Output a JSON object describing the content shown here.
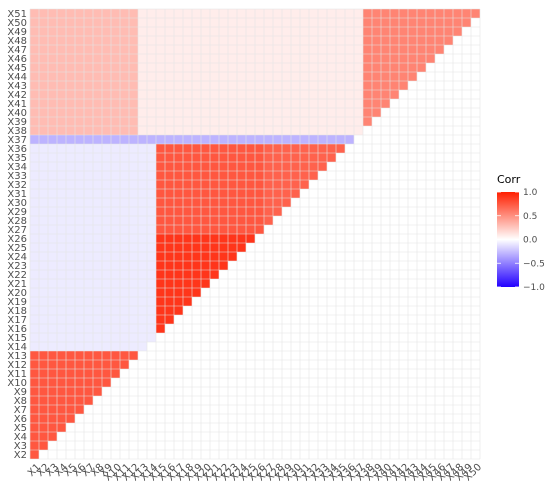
{
  "chart_data": {
    "type": "heatmap",
    "title": "",
    "xlabel": "",
    "ylabel": "",
    "variables": [
      "X1",
      "X2",
      "X3",
      "X4",
      "X5",
      "X6",
      "X7",
      "X8",
      "X9",
      "X10",
      "X11",
      "X12",
      "X13",
      "X14",
      "X15",
      "X16",
      "X17",
      "X18",
      "X19",
      "X20",
      "X21",
      "X22",
      "X23",
      "X24",
      "X25",
      "X26",
      "X27",
      "X28",
      "X29",
      "X30",
      "X31",
      "X32",
      "X33",
      "X34",
      "X35",
      "X36",
      "X37",
      "X38",
      "X39",
      "X40",
      "X41",
      "X42",
      "X43",
      "X44",
      "X45",
      "X46",
      "X47",
      "X48",
      "X49",
      "X50",
      "X51"
    ],
    "x_tick_labels": [
      "X1",
      "X2",
      "X3",
      "X4",
      "X5",
      "X6",
      "X7",
      "X8",
      "X9",
      "X10",
      "X11",
      "X12",
      "X13",
      "X14",
      "X15",
      "X16",
      "X17",
      "X18",
      "X19",
      "X20",
      "X21",
      "X22",
      "X23",
      "X24",
      "X25",
      "X26",
      "X27",
      "X28",
      "X29",
      "X30",
      "X31",
      "X32",
      "X33",
      "X34",
      "X35",
      "X36",
      "X37",
      "X38",
      "X39",
      "X40",
      "X41",
      "X42",
      "X43",
      "X44",
      "X45",
      "X46",
      "X47",
      "X48",
      "X49",
      "X50"
    ],
    "y_tick_labels": [
      "X2",
      "X3",
      "X4",
      "X5",
      "X6",
      "X7",
      "X8",
      "X9",
      "X10",
      "X11",
      "X12",
      "X13",
      "X14",
      "X15",
      "X16",
      "X17",
      "X18",
      "X19",
      "X20",
      "X21",
      "X22",
      "X23",
      "X24",
      "X25",
      "X26",
      "X27",
      "X28",
      "X29",
      "X30",
      "X31",
      "X32",
      "X33",
      "X34",
      "X35",
      "X36",
      "X37",
      "X38",
      "X39",
      "X40",
      "X41",
      "X42",
      "X43",
      "X44",
      "X45",
      "X46",
      "X47",
      "X48",
      "X49",
      "X50",
      "X51"
    ],
    "lower_triangle": true,
    "grid": true,
    "blocks": [
      {
        "rows": [
          2,
          13
        ],
        "cols": [
          1,
          12
        ],
        "value": 0.75
      },
      {
        "rows": [
          16,
          26
        ],
        "cols": [
          15,
          25
        ],
        "value": 0.9
      },
      {
        "rows": [
          27,
          36
        ],
        "cols": [
          15,
          26
        ],
        "value": 0.75
      },
      {
        "rows": [
          27,
          36
        ],
        "cols": [
          27,
          35
        ],
        "value": 0.7
      },
      {
        "rows": [
          37,
          51
        ],
        "cols": [
          38,
          50
        ],
        "value": 0.55
      },
      {
        "rows": [
          38,
          51
        ],
        "cols": [
          1,
          12
        ],
        "value": 0.3
      },
      {
        "rows": [
          38,
          51
        ],
        "cols": [
          13,
          37
        ],
        "value": 0.08
      },
      {
        "rows": [
          37,
          37
        ],
        "cols": [
          1,
          36
        ],
        "value": -0.3
      },
      {
        "rows": [
          14,
          37
        ],
        "cols": [
          1,
          14
        ],
        "value": -0.08
      }
    ],
    "legend": {
      "title": "Corr",
      "position": "right",
      "limits": [
        -1,
        1
      ],
      "ticks": [
        1.0,
        0.5,
        0.0,
        -0.5,
        -1.0
      ],
      "tick_labels": [
        "1.0",
        "0.5",
        "0.0",
        "−0.5",
        "−1.0"
      ],
      "colors": {
        "low": "#2200ff",
        "mid": "#ffffff",
        "high": "#ff1f00"
      }
    }
  }
}
